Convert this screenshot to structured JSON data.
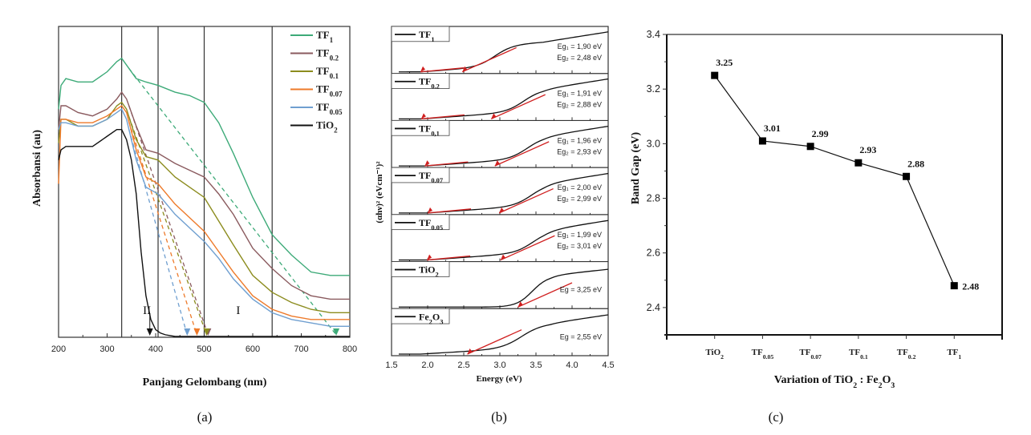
{
  "chart_data": [
    {
      "id": "a",
      "type": "line",
      "panel_label": "(a)",
      "title": "",
      "xlabel": "Panjang Gelombang (nm)",
      "ylabel": "Absorbansi (au)",
      "xlim": [
        200,
        800
      ],
      "xticks": [
        200,
        300,
        400,
        500,
        600,
        700,
        800
      ],
      "ylim": [
        0,
        1
      ],
      "grid": false,
      "legend_position": "top-right",
      "vertical_lines": [
        330,
        405,
        500,
        640
      ],
      "region_labels": [
        {
          "text": "II",
          "x": 382
        },
        {
          "text": "I",
          "x": 570
        }
      ],
      "series": [
        {
          "name": "TF",
          "sub": "1",
          "color": "#3daa78",
          "x": [
            200,
            205,
            215,
            240,
            270,
            300,
            320,
            330,
            340,
            360,
            380,
            405,
            440,
            470,
            500,
            530,
            560,
            600,
            640,
            680,
            720,
            760,
            800
          ],
          "y": [
            0.67,
            0.74,
            0.76,
            0.75,
            0.75,
            0.78,
            0.81,
            0.82,
            0.8,
            0.76,
            0.75,
            0.74,
            0.72,
            0.71,
            0.69,
            0.63,
            0.54,
            0.41,
            0.3,
            0.24,
            0.19,
            0.18,
            0.18
          ],
          "tangent_intercept": 772
        },
        {
          "name": "TF",
          "sub": "0.2",
          "color": "#8a5a5e",
          "x": [
            200,
            205,
            215,
            240,
            270,
            300,
            320,
            330,
            340,
            360,
            380,
            405,
            440,
            470,
            500,
            530,
            560,
            600,
            640,
            680,
            720,
            760,
            800
          ],
          "y": [
            0.61,
            0.68,
            0.68,
            0.66,
            0.65,
            0.67,
            0.7,
            0.72,
            0.7,
            0.62,
            0.55,
            0.54,
            0.51,
            0.49,
            0.47,
            0.42,
            0.36,
            0.26,
            0.2,
            0.15,
            0.12,
            0.11,
            0.11
          ],
          "tangent_intercept": 508
        },
        {
          "name": "TF",
          "sub": "0.1",
          "color": "#8c8c1e",
          "x": [
            200,
            205,
            215,
            240,
            270,
            300,
            320,
            330,
            340,
            360,
            380,
            405,
            440,
            470,
            500,
            530,
            560,
            600,
            640,
            680,
            720,
            760,
            800
          ],
          "y": [
            0.57,
            0.64,
            0.64,
            0.62,
            0.62,
            0.64,
            0.68,
            0.69,
            0.67,
            0.58,
            0.53,
            0.52,
            0.47,
            0.44,
            0.41,
            0.34,
            0.27,
            0.18,
            0.13,
            0.1,
            0.08,
            0.07,
            0.07
          ],
          "tangent_intercept": 505
        },
        {
          "name": "TF",
          "sub": "0.07",
          "color": "#ee7a2a",
          "x": [
            200,
            205,
            215,
            240,
            270,
            300,
            320,
            330,
            340,
            360,
            380,
            405,
            440,
            470,
            500,
            530,
            560,
            600,
            640,
            680,
            720,
            760,
            800
          ],
          "y": [
            0.45,
            0.64,
            0.64,
            0.63,
            0.63,
            0.65,
            0.67,
            0.68,
            0.66,
            0.55,
            0.47,
            0.45,
            0.39,
            0.35,
            0.31,
            0.25,
            0.19,
            0.12,
            0.08,
            0.06,
            0.05,
            0.05,
            0.05
          ],
          "tangent_intercept": 485
        },
        {
          "name": "TF",
          "sub": "0.05",
          "color": "#6f9fd0",
          "x": [
            200,
            205,
            215,
            240,
            270,
            300,
            320,
            330,
            340,
            360,
            380,
            405,
            440,
            470,
            500,
            530,
            560,
            600,
            640,
            680,
            720,
            760,
            800
          ],
          "y": [
            0.61,
            0.63,
            0.63,
            0.62,
            0.62,
            0.64,
            0.66,
            0.67,
            0.64,
            0.52,
            0.44,
            0.42,
            0.36,
            0.32,
            0.28,
            0.23,
            0.17,
            0.11,
            0.07,
            0.05,
            0.04,
            0.03,
            0.03
          ],
          "tangent_intercept": 465
        },
        {
          "name": "TiO",
          "sub": "2",
          "color": "#111111",
          "x": [
            200,
            205,
            215,
            240,
            270,
            300,
            320,
            330,
            340,
            350,
            360,
            370,
            380,
            390,
            400,
            410,
            420,
            440,
            500,
            600,
            700,
            800
          ],
          "y": [
            0.52,
            0.55,
            0.56,
            0.56,
            0.56,
            0.59,
            0.61,
            0.61,
            0.58,
            0.52,
            0.42,
            0.25,
            0.12,
            0.05,
            0.02,
            0.01,
            0.005,
            0.0,
            0.0,
            0.0,
            0.0,
            0.0
          ],
          "tangent_intercept": 388
        }
      ]
    },
    {
      "id": "b",
      "type": "line",
      "panel_label": "(b)",
      "title": "",
      "xlabel": "Energy (eV)",
      "ylabel": "(αhν)² (eVcm⁻¹)²",
      "xlim": [
        1.5,
        4.5
      ],
      "xticks": [
        "1.5",
        "2.0",
        "2.5",
        "3.0",
        "3.5",
        "4.0",
        "4.5"
      ],
      "grid": false,
      "stacked_panels": [
        {
          "name": "TF",
          "sub": "1",
          "eg_lines": [
            "Eg₁ = 1,90 eV",
            "Eg₂ = 2,48 eV"
          ],
          "eg_values": [
            1.9,
            2.48
          ]
        },
        {
          "name": "TF",
          "sub": "0.2",
          "eg_lines": [
            "Eg₁ = 1,91 eV",
            "Eg₂ = 2,88 eV"
          ],
          "eg_values": [
            1.91,
            2.88
          ]
        },
        {
          "name": "TF",
          "sub": "0,1",
          "eg_lines": [
            "Eg₁ = 1,96 eV",
            "Eg₂ = 2,93 eV"
          ],
          "eg_values": [
            1.96,
            2.93
          ]
        },
        {
          "name": "TF",
          "sub": "0.07",
          "eg_lines": [
            "Eg₁ = 2,00 eV",
            "Eg₂ = 2,99 eV"
          ],
          "eg_values": [
            2.0,
            2.99
          ]
        },
        {
          "name": "TF",
          "sub": "0.05",
          "eg_lines": [
            "Eg₁ = 1,99 eV",
            "Eg₂ = 3,01 eV"
          ],
          "eg_values": [
            1.99,
            3.01
          ]
        },
        {
          "name": "TiO",
          "sub": "2",
          "eg_lines": [
            "Eg = 3,25 eV"
          ],
          "eg_values": [
            3.25
          ]
        },
        {
          "name": "Fe",
          "sub": "2",
          "name2": "O",
          "sub2": "3",
          "eg_lines": [
            "Eg = 2,55 eV"
          ],
          "eg_values": [
            2.55
          ]
        }
      ]
    },
    {
      "id": "c",
      "type": "line",
      "panel_label": "(c)",
      "title": "",
      "xlabel": "Variation of TiO₂ : Fe₂O₃",
      "ylabel": "Band Gap (eV)",
      "ylim": [
        2.3,
        3.4
      ],
      "yticks": [
        "2.4",
        "2.6",
        "2.8",
        "3.0",
        "3.2",
        "3.4"
      ],
      "grid": false,
      "categories": [
        {
          "name": "TiO",
          "sub": "2"
        },
        {
          "name": "TF",
          "sub": "0.05"
        },
        {
          "name": "TF",
          "sub": "0.07"
        },
        {
          "name": "TF",
          "sub": "0.1"
        },
        {
          "name": "TF",
          "sub": "0.2"
        },
        {
          "name": "TF",
          "sub": "1"
        }
      ],
      "values": [
        3.25,
        3.01,
        2.99,
        2.93,
        2.88,
        2.48
      ],
      "data_labels": [
        "3.25",
        "3.01",
        "2.99",
        "2.93",
        "2.88",
        "2.48"
      ]
    }
  ]
}
